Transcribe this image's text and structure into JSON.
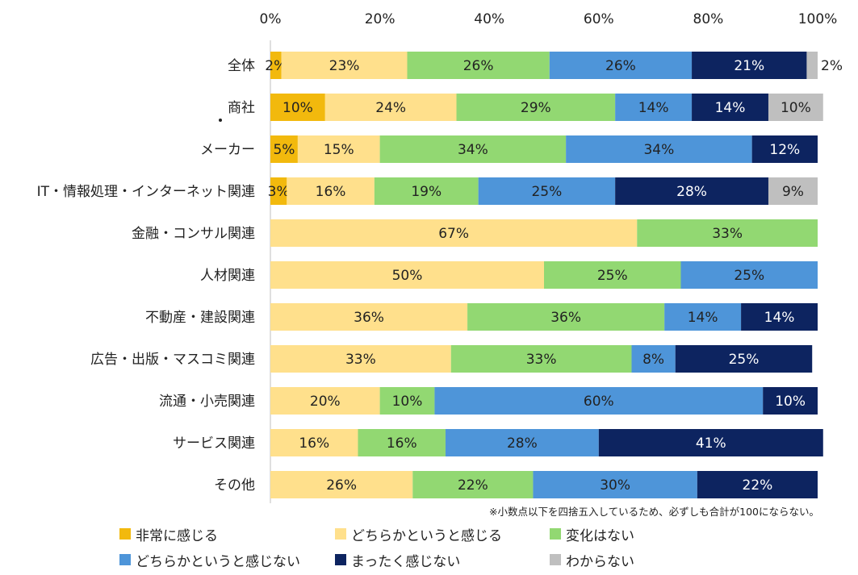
{
  "chart_data": {
    "type": "bar",
    "orientation": "horizontal",
    "stacked": true,
    "normalized": true,
    "xlim": [
      0,
      100
    ],
    "x_ticks": [
      "0%",
      "20%",
      "40%",
      "60%",
      "80%",
      "100%"
    ],
    "categories": [
      "全体",
      "商社",
      "メーカー",
      "IT・情報処理・インターネット関連",
      "金融・コンサル関連",
      "人材関連",
      "不動産・建設関連",
      "広告・出版・マスコミ関連",
      "流通・小売関連",
      "サービス関連",
      "その他"
    ],
    "series": [
      {
        "name": "非常に感じる",
        "color": "#F2B90D",
        "values": [
          2,
          10,
          5,
          3,
          0,
          0,
          0,
          0,
          0,
          0,
          0
        ]
      },
      {
        "name": "どちらかというと感じる",
        "color": "#FFE08C",
        "values": [
          23,
          24,
          15,
          16,
          67,
          50,
          36,
          33,
          20,
          16,
          26
        ]
      },
      {
        "name": "変化はない",
        "color": "#92D872",
        "values": [
          26,
          29,
          34,
          19,
          33,
          25,
          36,
          33,
          10,
          16,
          22
        ]
      },
      {
        "name": "どちらかというと感じない",
        "color": "#4E95D9",
        "values": [
          26,
          14,
          34,
          25,
          0,
          25,
          14,
          8,
          60,
          28,
          30
        ]
      },
      {
        "name": "まったく感じない",
        "color": "#0D2460",
        "values": [
          21,
          14,
          12,
          28,
          0,
          0,
          14,
          25,
          10,
          41,
          22
        ]
      },
      {
        "name": "わからない",
        "color": "#BFBFBF",
        "values": [
          2,
          10,
          0,
          9,
          0,
          0,
          0,
          0,
          0,
          0,
          0
        ]
      }
    ],
    "value_suffix": "%"
  },
  "note": "※小数点以下を四捨五入しているため、必ずしも合計が100にならない。"
}
